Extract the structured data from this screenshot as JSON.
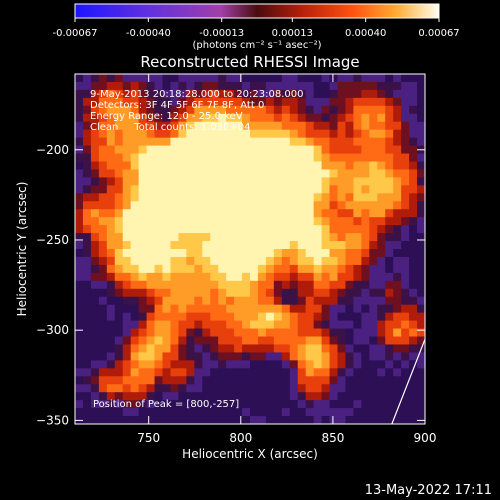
{
  "chart_data": {
    "type": "heatmap",
    "title": "Reconstructed RHESSI Image",
    "xlabel": "Heliocentric X (arcsec)",
    "ylabel": "Heliocentric Y (arcsec)",
    "xlim": [
      710,
      900
    ],
    "ylim": [
      -352,
      -158
    ],
    "x_ticks": [
      750,
      800,
      850,
      900
    ],
    "y_ticks": [
      -200,
      -250,
      -300,
      -350
    ],
    "colorbar": {
      "unit_label": "(photons cm⁻² s⁻¹ asec⁻²)",
      "range": [
        -0.00067,
        0.00067
      ],
      "tick_values": [
        -0.00067,
        -0.0004,
        -0.00013,
        0.00013,
        0.0004,
        0.00067
      ],
      "tick_labels": [
        "-0.00067",
        "-0.00040",
        "-0.00013",
        "0.00013",
        "0.00040",
        "0.00067"
      ]
    },
    "annotations": [
      "9-May-2013 20:18:28.000 to 20:23:08.000",
      "Detectors: 3F 4F 5F 6F 7F 8F, Att 0",
      "Energy Range: 12.0 - 25.0 keV",
      "Clean     Total counts: 1.03E+04"
    ],
    "peak": {
      "label": "Position of Peak = [800,-257]",
      "x": 800,
      "y": -257
    },
    "limb_points": [
      [
        882,
        -352
      ],
      [
        900,
        -305
      ]
    ],
    "grid": false,
    "legend": "none"
  },
  "footer": {
    "timestamp": "13-May-2022 17:11"
  },
  "colors": {
    "background": "#000000",
    "text": "#ffffff"
  }
}
